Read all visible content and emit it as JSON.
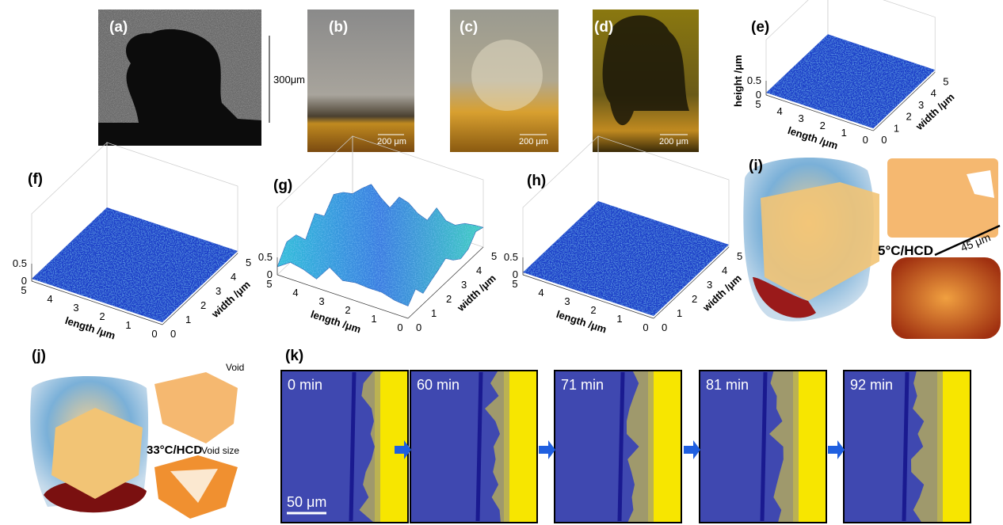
{
  "panels": {
    "a": {
      "label": "(a)",
      "scale": "300μm"
    },
    "b": {
      "label": "(b)",
      "scale": "200 μm"
    },
    "c": {
      "label": "(c)",
      "scale": "200 μm"
    },
    "d": {
      "label": "(d)",
      "scale": "200 μm"
    },
    "e": {
      "label": "(e)",
      "z_label": "height /μm",
      "z_ticks": [
        0.5,
        0
      ],
      "length_label": "length /μm",
      "length_ticks": [
        5,
        4,
        3,
        2,
        1,
        0
      ],
      "width_label": "width /μm",
      "width_ticks": [
        0,
        1,
        2,
        3,
        4,
        5
      ]
    },
    "f": {
      "label": "(f)",
      "z_ticks": [
        0.5,
        0
      ],
      "length_label": "length /μm",
      "length_ticks": [
        5,
        4,
        3,
        2,
        1,
        0
      ],
      "width_label": "width /μm",
      "width_ticks": [
        0,
        1,
        2,
        3,
        4,
        5
      ]
    },
    "g": {
      "label": "(g)",
      "z_ticks": [
        0.5,
        0
      ],
      "length_label": "length /μm",
      "length_ticks": [
        5,
        4,
        3,
        2,
        1,
        0
      ],
      "width_label": "width /μm",
      "width_ticks": [
        0,
        1,
        2,
        3,
        4,
        5
      ]
    },
    "h": {
      "label": "(h)",
      "z_ticks": [
        0.5,
        0
      ],
      "length_label": "length /μm",
      "length_ticks": [
        5,
        4,
        3,
        2,
        1,
        0
      ],
      "width_label": "width /μm",
      "width_ticks": [
        0,
        1,
        2,
        3,
        4,
        5
      ]
    },
    "i": {
      "label": "(i)",
      "condition": "5°C/HCD",
      "scale": "45 μm"
    },
    "j": {
      "label": "(j)",
      "void": "Void",
      "condition": "33°C/HCD",
      "void_size": "Void size"
    },
    "k": {
      "label": "(k)",
      "times": [
        "0 min",
        "60 min",
        "71 min",
        "81 min",
        "92 min"
      ],
      "scale": "50 μm"
    }
  }
}
